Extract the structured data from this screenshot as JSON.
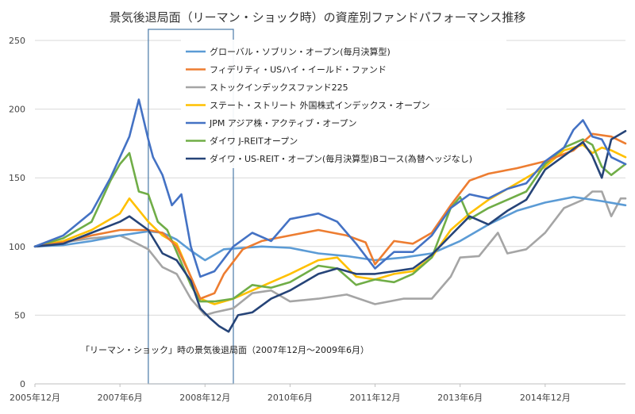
{
  "chart_data": {
    "type": "line",
    "title": "景気後退局面（リーマン・ショック時）の資産別ファンドパフォーマンス推移",
    "xlabel": "",
    "ylabel": "",
    "ylim": [
      0,
      250
    ],
    "yticks": [
      0,
      50,
      100,
      150,
      200,
      250
    ],
    "x_tick_labels": [
      "2005年12月",
      "2007年6月",
      "2008年12月",
      "2010年6月",
      "2011年12月",
      "2013年6月",
      "2014年12月"
    ],
    "x_tick_months": [
      0,
      18,
      36,
      54,
      72,
      90,
      108
    ],
    "x_range_months": [
      0,
      125
    ],
    "grid": "horizontal",
    "legend_position": "top-center",
    "highlight_region": {
      "start_month": 24,
      "end_month": 42,
      "label": "「リーマン・ショック」時の景気後退局面（2007年12月～2009年6月）"
    },
    "series": [
      {
        "name": "グローバル・ソブリン・オープン(毎月決算型)",
        "color": "#5b9bd5",
        "points": [
          [
            0,
            100
          ],
          [
            6,
            101
          ],
          [
            12,
            104
          ],
          [
            18,
            108
          ],
          [
            24,
            111
          ],
          [
            27,
            110
          ],
          [
            30,
            105
          ],
          [
            33,
            97
          ],
          [
            36,
            90
          ],
          [
            40,
            98
          ],
          [
            48,
            100
          ],
          [
            54,
            99
          ],
          [
            60,
            95
          ],
          [
            66,
            93
          ],
          [
            72,
            90
          ],
          [
            78,
            92
          ],
          [
            84,
            95
          ],
          [
            90,
            104
          ],
          [
            96,
            116
          ],
          [
            102,
            126
          ],
          [
            108,
            132
          ],
          [
            114,
            136
          ],
          [
            120,
            133
          ],
          [
            125,
            130
          ]
        ]
      },
      {
        "name": "フィデリティ・USハイ・イールド・ファンド",
        "color": "#ed7d31",
        "points": [
          [
            0,
            100
          ],
          [
            6,
            103
          ],
          [
            12,
            108
          ],
          [
            18,
            112
          ],
          [
            24,
            112
          ],
          [
            27,
            110
          ],
          [
            30,
            100
          ],
          [
            33,
            78
          ],
          [
            35,
            62
          ],
          [
            38,
            66
          ],
          [
            40,
            80
          ],
          [
            44,
            98
          ],
          [
            48,
            104
          ],
          [
            54,
            108
          ],
          [
            60,
            112
          ],
          [
            66,
            108
          ],
          [
            70,
            103
          ],
          [
            72,
            87
          ],
          [
            76,
            104
          ],
          [
            80,
            102
          ],
          [
            84,
            110
          ],
          [
            88,
            130
          ],
          [
            92,
            148
          ],
          [
            96,
            153
          ],
          [
            102,
            157
          ],
          [
            108,
            162
          ],
          [
            114,
            170
          ],
          [
            118,
            182
          ],
          [
            122,
            180
          ],
          [
            125,
            175
          ]
        ]
      },
      {
        "name": "ストックインデックスファンド225",
        "color": "#a5a5a5",
        "points": [
          [
            0,
            100
          ],
          [
            6,
            103
          ],
          [
            12,
            106
          ],
          [
            18,
            108
          ],
          [
            20,
            105
          ],
          [
            24,
            98
          ],
          [
            27,
            85
          ],
          [
            30,
            80
          ],
          [
            33,
            62
          ],
          [
            36,
            50
          ],
          [
            38,
            52
          ],
          [
            42,
            55
          ],
          [
            46,
            66
          ],
          [
            50,
            68
          ],
          [
            54,
            60
          ],
          [
            60,
            62
          ],
          [
            66,
            65
          ],
          [
            72,
            58
          ],
          [
            78,
            62
          ],
          [
            84,
            62
          ],
          [
            88,
            78
          ],
          [
            90,
            92
          ],
          [
            94,
            93
          ],
          [
            98,
            110
          ],
          [
            100,
            95
          ],
          [
            104,
            98
          ],
          [
            108,
            110
          ],
          [
            112,
            128
          ],
          [
            116,
            134
          ],
          [
            118,
            140
          ],
          [
            120,
            140
          ],
          [
            122,
            122
          ],
          [
            124,
            135
          ],
          [
            125,
            135
          ]
        ]
      },
      {
        "name": "ステート・ストリート 外国株式インデックス・オープン",
        "color": "#ffc000",
        "points": [
          [
            0,
            100
          ],
          [
            6,
            104
          ],
          [
            12,
            112
          ],
          [
            18,
            124
          ],
          [
            20,
            135
          ],
          [
            24,
            118
          ],
          [
            27,
            108
          ],
          [
            30,
            102
          ],
          [
            33,
            78
          ],
          [
            35,
            62
          ],
          [
            38,
            58
          ],
          [
            42,
            62
          ],
          [
            46,
            68
          ],
          [
            50,
            74
          ],
          [
            54,
            80
          ],
          [
            60,
            90
          ],
          [
            64,
            92
          ],
          [
            68,
            78
          ],
          [
            72,
            76
          ],
          [
            76,
            80
          ],
          [
            80,
            82
          ],
          [
            84,
            92
          ],
          [
            88,
            112
          ],
          [
            92,
            124
          ],
          [
            96,
            134
          ],
          [
            100,
            142
          ],
          [
            104,
            150
          ],
          [
            108,
            158
          ],
          [
            112,
            170
          ],
          [
            116,
            174
          ],
          [
            118,
            168
          ],
          [
            120,
            172
          ],
          [
            122,
            170
          ],
          [
            125,
            165
          ]
        ]
      },
      {
        "name": "JPM アジア株・アクティブ・オープン",
        "color": "#4472c4",
        "points": [
          [
            0,
            100
          ],
          [
            6,
            108
          ],
          [
            12,
            125
          ],
          [
            16,
            150
          ],
          [
            18,
            165
          ],
          [
            20,
            180
          ],
          [
            22,
            207
          ],
          [
            24,
            178
          ],
          [
            25,
            165
          ],
          [
            27,
            152
          ],
          [
            29,
            130
          ],
          [
            31,
            138
          ],
          [
            33,
            100
          ],
          [
            35,
            78
          ],
          [
            38,
            82
          ],
          [
            42,
            100
          ],
          [
            46,
            110
          ],
          [
            50,
            104
          ],
          [
            54,
            120
          ],
          [
            60,
            124
          ],
          [
            64,
            118
          ],
          [
            68,
            102
          ],
          [
            72,
            84
          ],
          [
            76,
            96
          ],
          [
            80,
            96
          ],
          [
            84,
            108
          ],
          [
            88,
            128
          ],
          [
            92,
            138
          ],
          [
            96,
            135
          ],
          [
            100,
            142
          ],
          [
            104,
            146
          ],
          [
            108,
            162
          ],
          [
            112,
            172
          ],
          [
            114,
            185
          ],
          [
            116,
            192
          ],
          [
            118,
            180
          ],
          [
            120,
            178
          ],
          [
            122,
            165
          ],
          [
            125,
            160
          ]
        ]
      },
      {
        "name": "ダイワ J-REITオープン",
        "color": "#70ad47",
        "points": [
          [
            0,
            100
          ],
          [
            6,
            106
          ],
          [
            12,
            118
          ],
          [
            16,
            148
          ],
          [
            18,
            160
          ],
          [
            20,
            168
          ],
          [
            22,
            140
          ],
          [
            24,
            138
          ],
          [
            26,
            118
          ],
          [
            28,
            112
          ],
          [
            30,
            96
          ],
          [
            33,
            72
          ],
          [
            35,
            60
          ],
          [
            38,
            60
          ],
          [
            42,
            62
          ],
          [
            46,
            72
          ],
          [
            50,
            70
          ],
          [
            54,
            74
          ],
          [
            60,
            86
          ],
          [
            64,
            84
          ],
          [
            68,
            72
          ],
          [
            72,
            76
          ],
          [
            76,
            74
          ],
          [
            80,
            80
          ],
          [
            84,
            92
          ],
          [
            88,
            128
          ],
          [
            90,
            136
          ],
          [
            92,
            120
          ],
          [
            96,
            128
          ],
          [
            100,
            134
          ],
          [
            104,
            140
          ],
          [
            108,
            160
          ],
          [
            112,
            172
          ],
          [
            116,
            178
          ],
          [
            118,
            174
          ],
          [
            120,
            158
          ],
          [
            122,
            152
          ],
          [
            125,
            160
          ]
        ]
      },
      {
        "name": "ダイワ・US-REIT・オープン(毎月決算型)Bコース(為替ヘッジなし)",
        "color": "#264478",
        "points": [
          [
            0,
            100
          ],
          [
            6,
            102
          ],
          [
            12,
            110
          ],
          [
            18,
            118
          ],
          [
            20,
            122
          ],
          [
            24,
            112
          ],
          [
            27,
            95
          ],
          [
            30,
            90
          ],
          [
            33,
            75
          ],
          [
            35,
            55
          ],
          [
            37,
            48
          ],
          [
            39,
            42
          ],
          [
            41,
            38
          ],
          [
            43,
            50
          ],
          [
            46,
            52
          ],
          [
            50,
            62
          ],
          [
            54,
            68
          ],
          [
            60,
            80
          ],
          [
            64,
            84
          ],
          [
            68,
            80
          ],
          [
            72,
            80
          ],
          [
            76,
            82
          ],
          [
            80,
            84
          ],
          [
            84,
            94
          ],
          [
            88,
            108
          ],
          [
            92,
            122
          ],
          [
            96,
            116
          ],
          [
            100,
            126
          ],
          [
            104,
            134
          ],
          [
            108,
            156
          ],
          [
            112,
            166
          ],
          [
            116,
            176
          ],
          [
            118,
            166
          ],
          [
            120,
            150
          ],
          [
            122,
            178
          ],
          [
            125,
            184
          ]
        ]
      }
    ]
  }
}
